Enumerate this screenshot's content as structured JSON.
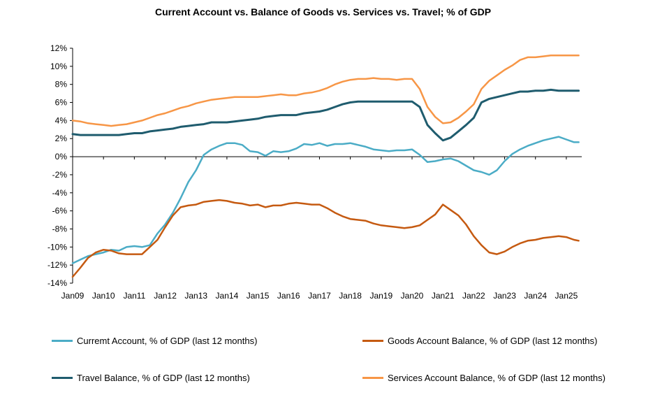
{
  "chart_data": {
    "type": "line",
    "title": "Current Account vs. Balance of Goods vs. Services vs. Travel; % of GDP",
    "xlabel": "",
    "ylabel": "",
    "ylim": [
      -14,
      12
    ],
    "yticks": [
      12,
      10,
      8,
      6,
      4,
      2,
      0,
      -2,
      -4,
      -6,
      -8,
      -10,
      -12,
      -14
    ],
    "ytick_labels": [
      "12%",
      "10%",
      "8%",
      "6%",
      "4%",
      "2%",
      "0%",
      "-2%",
      "-4%",
      "-6%",
      "-8%",
      "-10%",
      "-12%",
      "-14%"
    ],
    "xlim": [
      2009.0,
      2025.5
    ],
    "xtick_labels": [
      "Jan09",
      "Jan10",
      "Jan11",
      "Jan12",
      "Jan13",
      "Jan14",
      "Jan15",
      "Jan16",
      "Jan17",
      "Jan18",
      "Jan19",
      "Jan20",
      "Jan21",
      "Jan22",
      "Jan23",
      "Jan24",
      "Jan25"
    ],
    "xtick_values": [
      2009,
      2010,
      2011,
      2012,
      2013,
      2014,
      2015,
      2016,
      2017,
      2018,
      2019,
      2020,
      2021,
      2022,
      2023,
      2024,
      2025
    ],
    "grid": false,
    "series": [
      {
        "name": "Curremt Account,  % of GDP (last 12 months)",
        "color": "#4BACC6",
        "x": [
          2009.0,
          2009.25,
          2009.5,
          2009.75,
          2010.0,
          2010.25,
          2010.5,
          2010.75,
          2011.0,
          2011.25,
          2011.5,
          2011.75,
          2012.0,
          2012.25,
          2012.5,
          2012.75,
          2013.0,
          2013.25,
          2013.5,
          2013.75,
          2014.0,
          2014.25,
          2014.5,
          2014.75,
          2015.0,
          2015.25,
          2015.5,
          2015.75,
          2016.0,
          2016.25,
          2016.5,
          2016.75,
          2017.0,
          2017.25,
          2017.5,
          2017.75,
          2018.0,
          2018.25,
          2018.5,
          2018.75,
          2019.0,
          2019.25,
          2019.5,
          2019.75,
          2020.0,
          2020.25,
          2020.5,
          2020.75,
          2021.0,
          2021.25,
          2021.5,
          2021.75,
          2022.0,
          2022.25,
          2022.5,
          2022.75,
          2023.0,
          2023.25,
          2023.5,
          2023.75,
          2024.0,
          2024.25,
          2024.5,
          2024.75,
          2025.0,
          2025.25,
          2025.4
        ],
        "values": [
          -11.8,
          -11.4,
          -11.0,
          -10.8,
          -10.6,
          -10.3,
          -10.4,
          -10.0,
          -9.9,
          -10.0,
          -9.8,
          -8.5,
          -7.5,
          -6.2,
          -4.6,
          -2.8,
          -1.5,
          0.2,
          0.8,
          1.2,
          1.5,
          1.5,
          1.3,
          0.6,
          0.5,
          0.1,
          0.6,
          0.5,
          0.6,
          0.9,
          1.4,
          1.3,
          1.5,
          1.2,
          1.4,
          1.4,
          1.5,
          1.3,
          1.1,
          0.8,
          0.7,
          0.6,
          0.7,
          0.7,
          0.8,
          0.2,
          -0.6,
          -0.5,
          -0.3,
          -0.2,
          -0.5,
          -1.0,
          -1.5,
          -1.7,
          -2.0,
          -1.5,
          -0.5,
          0.3,
          0.8,
          1.2,
          1.5,
          1.8,
          2.0,
          2.2,
          1.9,
          1.6,
          1.6
        ]
      },
      {
        "name": "Goods Account Balance,  % of GDP (last 12 months)",
        "color": "#C55A11",
        "x": [
          2009.0,
          2009.25,
          2009.5,
          2009.75,
          2010.0,
          2010.25,
          2010.5,
          2010.75,
          2011.0,
          2011.25,
          2011.5,
          2011.75,
          2012.0,
          2012.25,
          2012.5,
          2012.75,
          2013.0,
          2013.25,
          2013.5,
          2013.75,
          2014.0,
          2014.25,
          2014.5,
          2014.75,
          2015.0,
          2015.25,
          2015.5,
          2015.75,
          2016.0,
          2016.25,
          2016.5,
          2016.75,
          2017.0,
          2017.25,
          2017.5,
          2017.75,
          2018.0,
          2018.25,
          2018.5,
          2018.75,
          2019.0,
          2019.25,
          2019.5,
          2019.75,
          2020.0,
          2020.25,
          2020.5,
          2020.75,
          2021.0,
          2021.25,
          2021.5,
          2021.75,
          2022.0,
          2022.25,
          2022.5,
          2022.75,
          2023.0,
          2023.25,
          2023.5,
          2023.75,
          2024.0,
          2024.25,
          2024.5,
          2024.75,
          2025.0,
          2025.25,
          2025.4
        ],
        "values": [
          -13.3,
          -12.3,
          -11.2,
          -10.6,
          -10.3,
          -10.4,
          -10.7,
          -10.8,
          -10.8,
          -10.8,
          -10.0,
          -9.2,
          -7.8,
          -6.5,
          -5.6,
          -5.4,
          -5.3,
          -5.0,
          -4.9,
          -4.8,
          -4.9,
          -5.1,
          -5.2,
          -5.4,
          -5.3,
          -5.6,
          -5.4,
          -5.4,
          -5.2,
          -5.1,
          -5.2,
          -5.3,
          -5.3,
          -5.7,
          -6.2,
          -6.6,
          -6.9,
          -7.0,
          -7.1,
          -7.4,
          -7.6,
          -7.7,
          -7.8,
          -7.9,
          -7.8,
          -7.6,
          -7.0,
          -6.4,
          -5.3,
          -5.9,
          -6.5,
          -7.5,
          -8.8,
          -9.8,
          -10.6,
          -10.8,
          -10.5,
          -10.0,
          -9.6,
          -9.3,
          -9.2,
          -9.0,
          -8.9,
          -8.8,
          -8.9,
          -9.2,
          -9.3
        ]
      },
      {
        "name": "Travel Balance,  % of GDP (last 12 months)",
        "color": "#1F5C6E",
        "x": [
          2009.0,
          2009.25,
          2009.5,
          2009.75,
          2010.0,
          2010.25,
          2010.5,
          2010.75,
          2011.0,
          2011.25,
          2011.5,
          2011.75,
          2012.0,
          2012.25,
          2012.5,
          2012.75,
          2013.0,
          2013.25,
          2013.5,
          2013.75,
          2014.0,
          2014.25,
          2014.5,
          2014.75,
          2015.0,
          2015.25,
          2015.5,
          2015.75,
          2016.0,
          2016.25,
          2016.5,
          2016.75,
          2017.0,
          2017.25,
          2017.5,
          2017.75,
          2018.0,
          2018.25,
          2018.5,
          2018.75,
          2019.0,
          2019.25,
          2019.5,
          2019.75,
          2020.0,
          2020.25,
          2020.5,
          2020.75,
          2021.0,
          2021.25,
          2021.5,
          2021.75,
          2022.0,
          2022.25,
          2022.5,
          2022.75,
          2023.0,
          2023.25,
          2023.5,
          2023.75,
          2024.0,
          2024.25,
          2024.5,
          2024.75,
          2025.0,
          2025.25,
          2025.4
        ],
        "values": [
          2.5,
          2.4,
          2.4,
          2.4,
          2.4,
          2.4,
          2.4,
          2.5,
          2.6,
          2.6,
          2.8,
          2.9,
          3.0,
          3.1,
          3.3,
          3.4,
          3.5,
          3.6,
          3.8,
          3.8,
          3.8,
          3.9,
          4.0,
          4.1,
          4.2,
          4.4,
          4.5,
          4.6,
          4.6,
          4.6,
          4.8,
          4.9,
          5.0,
          5.2,
          5.5,
          5.8,
          6.0,
          6.1,
          6.1,
          6.1,
          6.1,
          6.1,
          6.1,
          6.1,
          6.1,
          5.5,
          3.5,
          2.6,
          1.8,
          2.1,
          2.8,
          3.5,
          4.3,
          6.0,
          6.4,
          6.6,
          6.8,
          7.0,
          7.2,
          7.2,
          7.3,
          7.3,
          7.4,
          7.3,
          7.3,
          7.3,
          7.3
        ]
      },
      {
        "name": "Services Account Balance,  % of GDP (last 12 months)",
        "color": "#F79646",
        "x": [
          2009.0,
          2009.25,
          2009.5,
          2009.75,
          2010.0,
          2010.25,
          2010.5,
          2010.75,
          2011.0,
          2011.25,
          2011.5,
          2011.75,
          2012.0,
          2012.25,
          2012.5,
          2012.75,
          2013.0,
          2013.25,
          2013.5,
          2013.75,
          2014.0,
          2014.25,
          2014.5,
          2014.75,
          2015.0,
          2015.25,
          2015.5,
          2015.75,
          2016.0,
          2016.25,
          2016.5,
          2016.75,
          2017.0,
          2017.25,
          2017.5,
          2017.75,
          2018.0,
          2018.25,
          2018.5,
          2018.75,
          2019.0,
          2019.25,
          2019.5,
          2019.75,
          2020.0,
          2020.25,
          2020.5,
          2020.75,
          2021.0,
          2021.25,
          2021.5,
          2021.75,
          2022.0,
          2022.25,
          2022.5,
          2022.75,
          2023.0,
          2023.25,
          2023.5,
          2023.75,
          2024.0,
          2024.25,
          2024.5,
          2024.75,
          2025.0,
          2025.25,
          2025.4
        ],
        "values": [
          4.0,
          3.9,
          3.7,
          3.6,
          3.5,
          3.4,
          3.5,
          3.6,
          3.8,
          4.0,
          4.3,
          4.6,
          4.8,
          5.1,
          5.4,
          5.6,
          5.9,
          6.1,
          6.3,
          6.4,
          6.5,
          6.6,
          6.6,
          6.6,
          6.6,
          6.7,
          6.8,
          6.9,
          6.8,
          6.8,
          7.0,
          7.1,
          7.3,
          7.6,
          8.0,
          8.3,
          8.5,
          8.6,
          8.6,
          8.7,
          8.6,
          8.6,
          8.5,
          8.6,
          8.6,
          7.5,
          5.5,
          4.4,
          3.7,
          3.8,
          4.3,
          5.0,
          5.8,
          7.5,
          8.4,
          9.0,
          9.6,
          10.1,
          10.7,
          11.0,
          11.0,
          11.1,
          11.2,
          11.2,
          11.2,
          11.2,
          11.2
        ]
      }
    ],
    "legend_placement": "bottom"
  }
}
